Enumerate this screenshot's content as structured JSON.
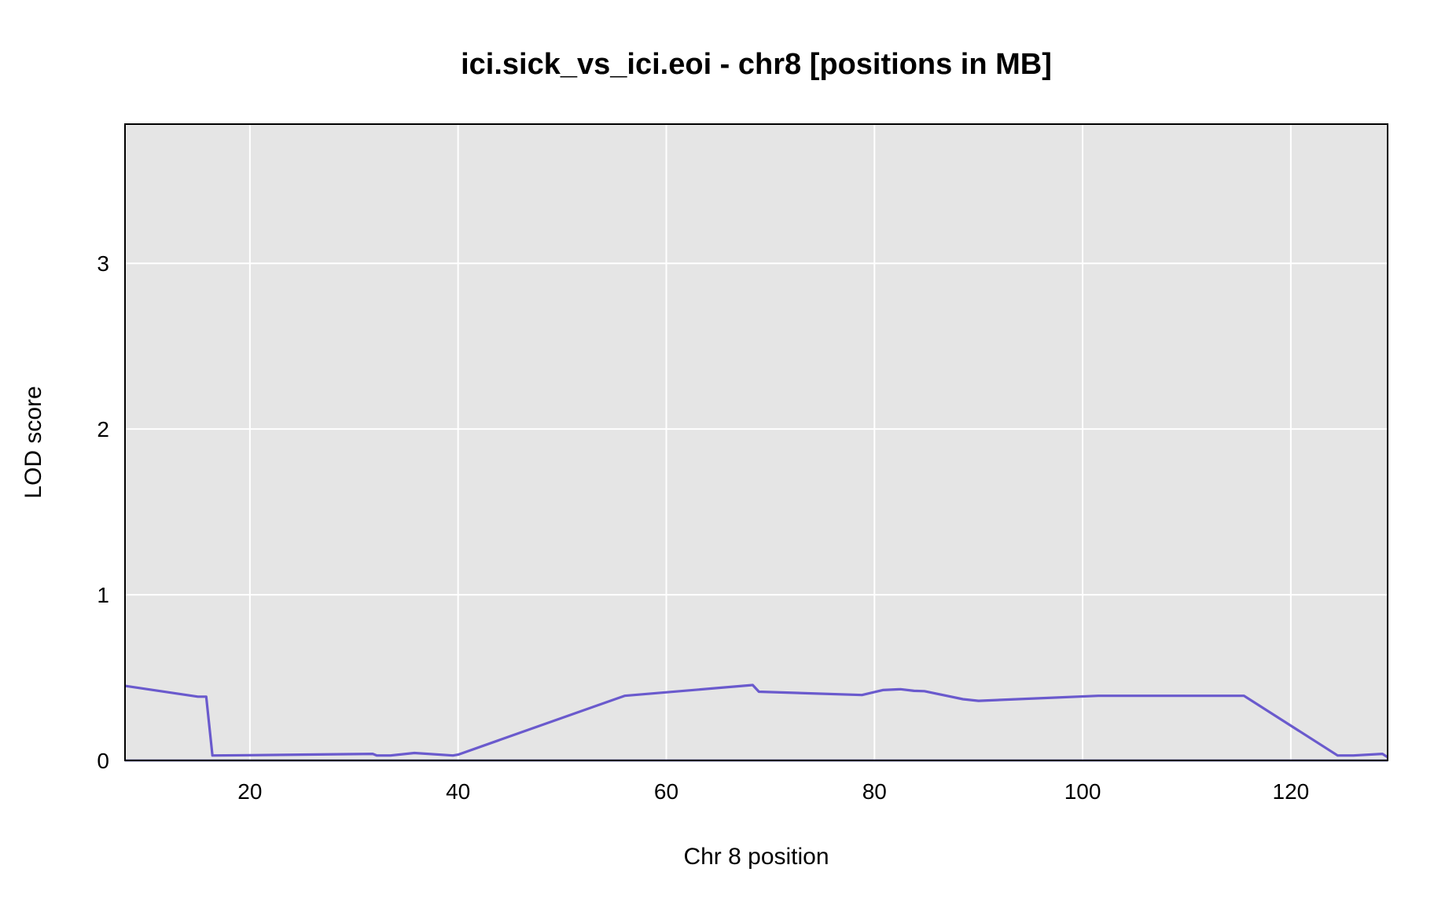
{
  "chart_data": {
    "type": "line",
    "title": "ici.sick_vs_ici.eoi - chr8 [positions in MB]",
    "xlabel": "Chr 8 position",
    "ylabel": "LOD score",
    "xlim": [
      8,
      129.3
    ],
    "ylim": [
      0,
      3.84
    ],
    "x_ticks": [
      20,
      40,
      60,
      80,
      100,
      120
    ],
    "y_ticks": [
      0,
      1,
      2,
      3
    ],
    "grid": true,
    "legend": "none",
    "colors": {
      "panel_background": "#e5e5e5",
      "gridline": "#ffffff",
      "series_line": "#6a5acd",
      "baseline": "#1e1e8c",
      "frame": "#000000"
    },
    "series": [
      {
        "values_x": [
          8.0,
          15.0,
          15.8,
          16.4,
          20.0,
          31.8,
          32.2,
          33.5,
          35.8,
          39.5,
          40.0,
          56.0,
          68.3,
          68.9,
          78.8,
          80.8,
          82.5,
          83.8,
          84.8,
          88.5,
          90.0,
          101.5,
          115.5,
          124.5,
          126.0,
          128.8,
          129.3
        ],
        "values_y": [
          0.45,
          0.385,
          0.385,
          0.03,
          0.032,
          0.04,
          0.03,
          0.03,
          0.045,
          0.03,
          0.035,
          0.39,
          0.455,
          0.415,
          0.395,
          0.425,
          0.43,
          0.42,
          0.418,
          0.37,
          0.36,
          0.39,
          0.39,
          0.03,
          0.03,
          0.04,
          0.02
        ]
      }
    ]
  }
}
